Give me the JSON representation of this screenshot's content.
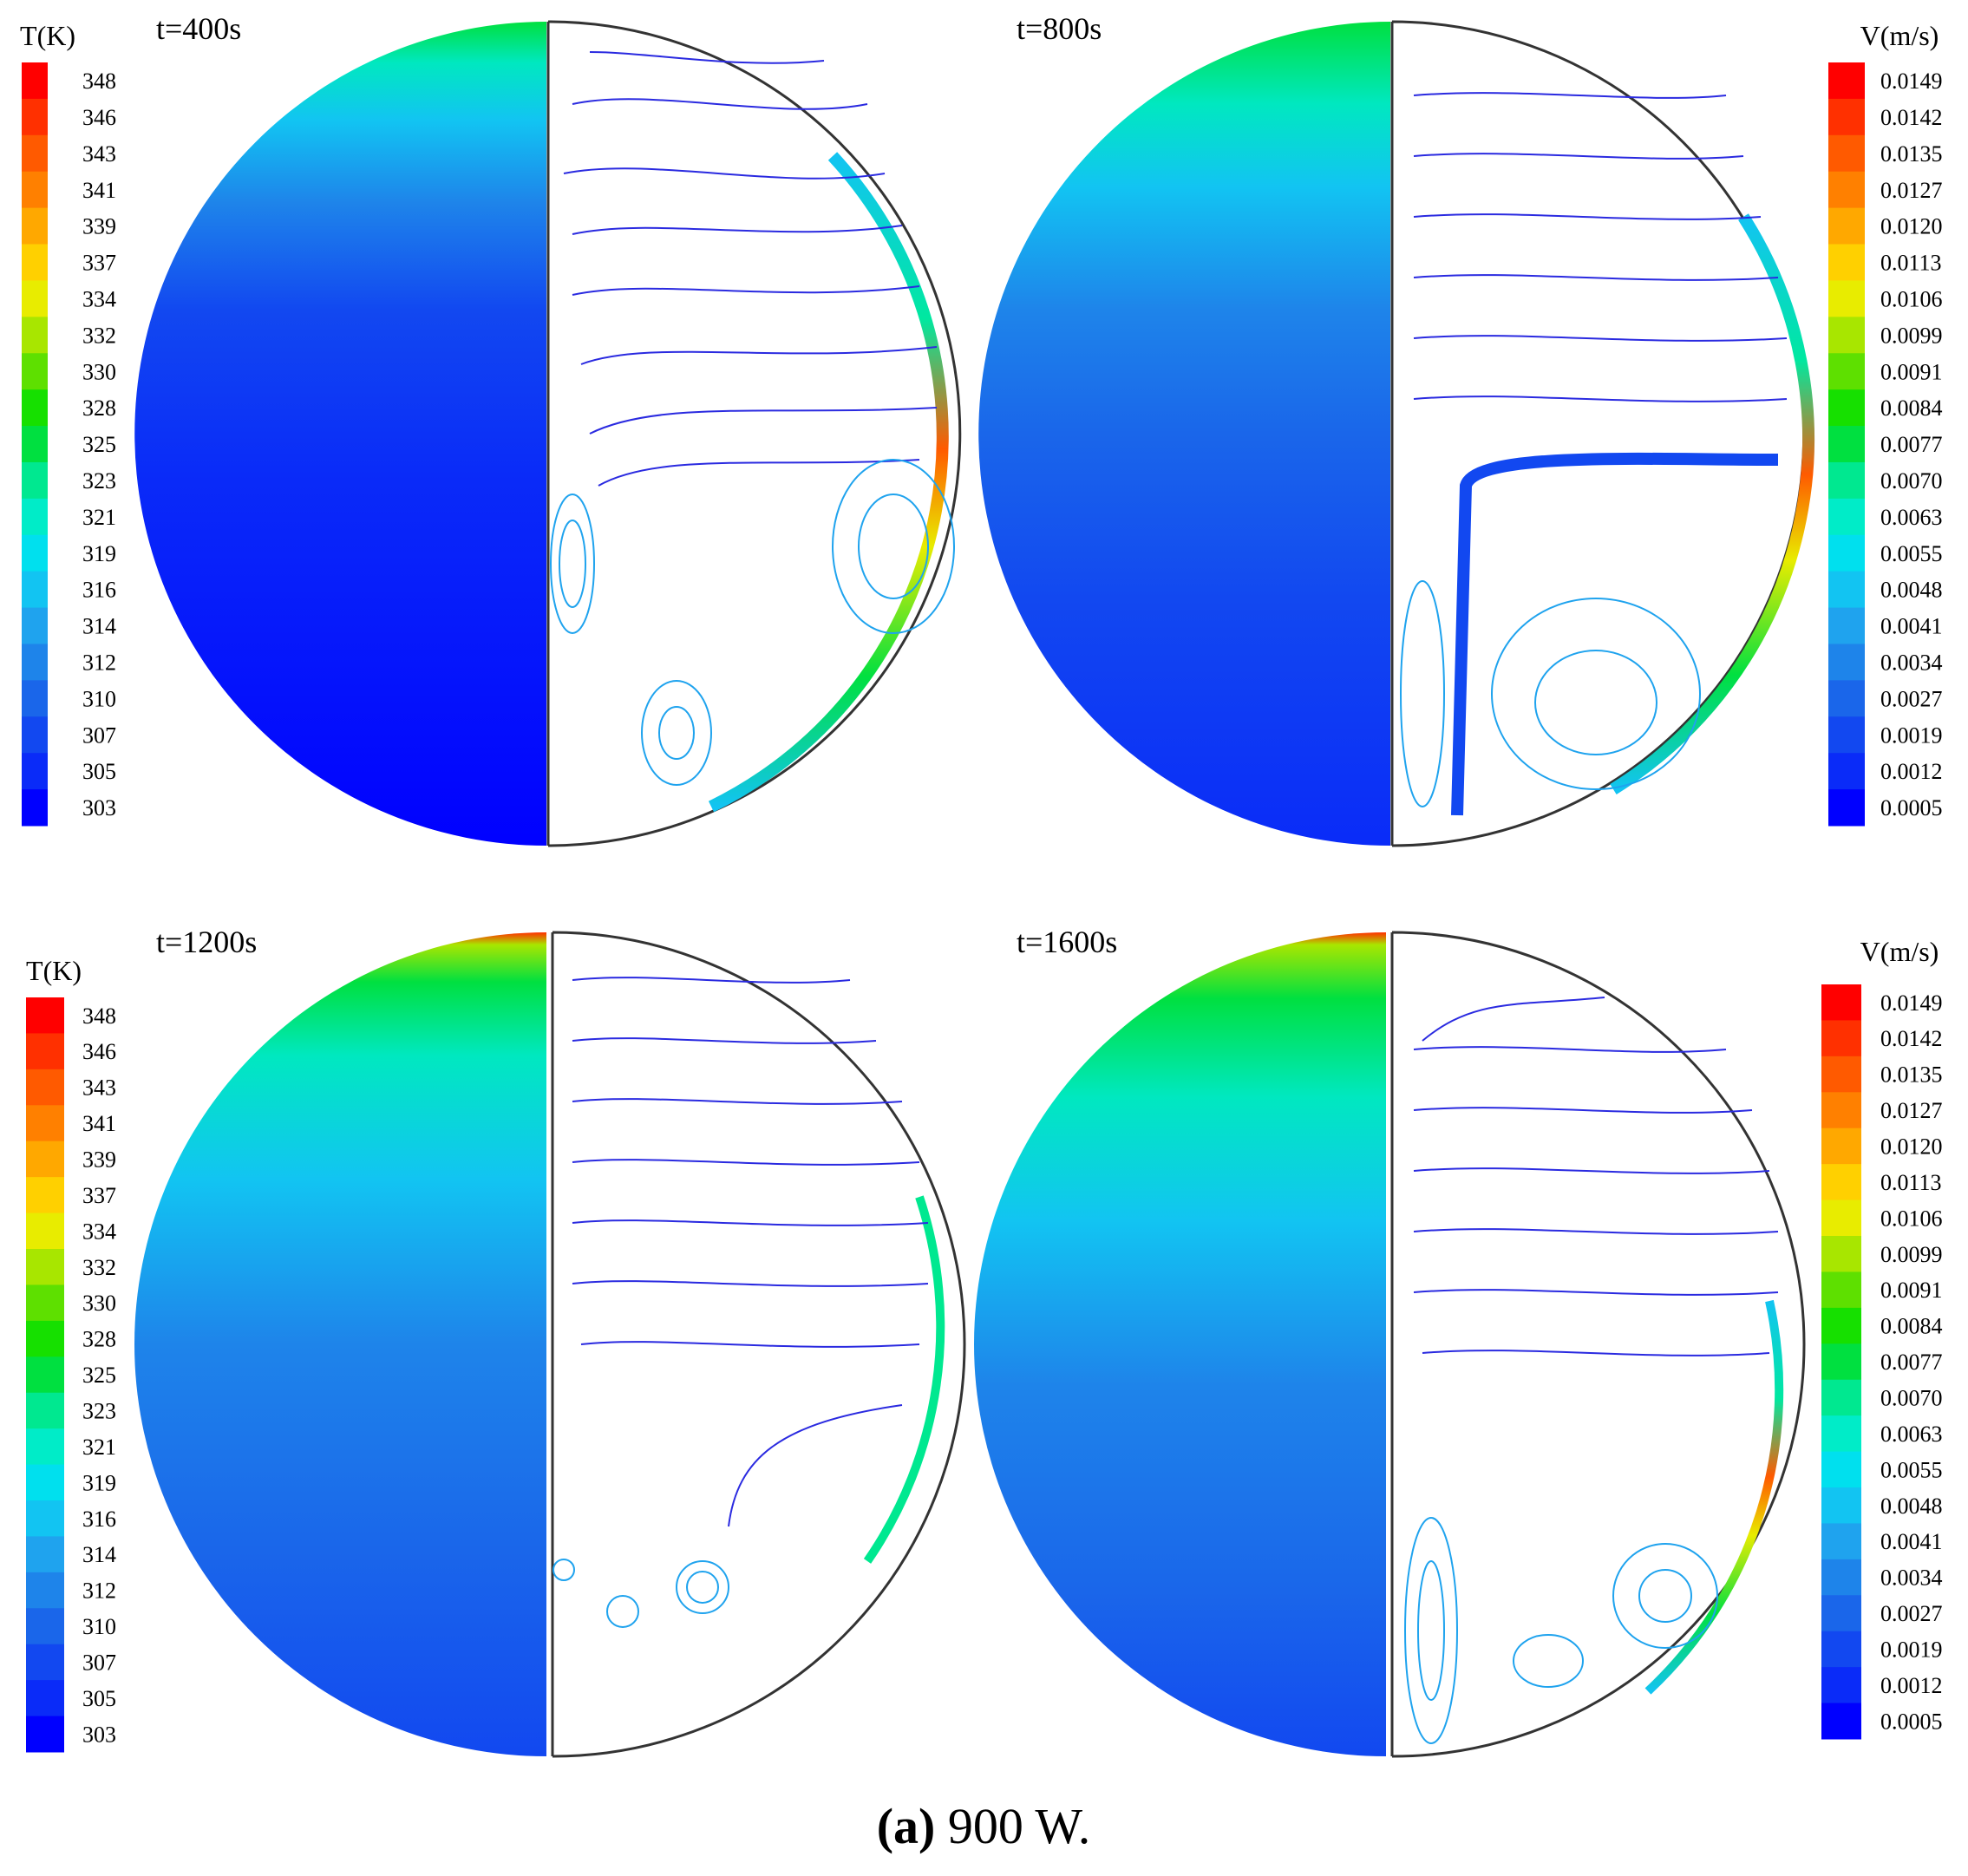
{
  "temperature_legend": {
    "title": "T(K)",
    "ticks": [
      "348",
      "346",
      "343",
      "341",
      "339",
      "337",
      "334",
      "332",
      "330",
      "328",
      "325",
      "323",
      "321",
      "319",
      "316",
      "314",
      "312",
      "310",
      "307",
      "305",
      "303"
    ]
  },
  "velocity_legend": {
    "title": "V(m/s)",
    "ticks": [
      "0.0149",
      "0.0142",
      "0.0135",
      "0.0127",
      "0.0120",
      "0.0113",
      "0.0106",
      "0.0099",
      "0.0091",
      "0.0084",
      "0.0077",
      "0.0070",
      "0.0063",
      "0.0055",
      "0.0048",
      "0.0041",
      "0.0034",
      "0.0027",
      "0.0019",
      "0.0012",
      "0.0005"
    ]
  },
  "panels": [
    {
      "time_label": "t=400s"
    },
    {
      "time_label": "t=800s"
    },
    {
      "time_label": "t=1200s"
    },
    {
      "time_label": "t=1600s"
    }
  ],
  "caption": {
    "label": "(a)",
    "text": " 900 W."
  },
  "colors": {
    "palette": [
      "#0000ff",
      "#0a2bf8",
      "#1248f0",
      "#1a66ea",
      "#1e84ea",
      "#1fa3ee",
      "#12c4f2",
      "#00e0ee",
      "#00ecc8",
      "#00e890",
      "#00e040",
      "#16e000",
      "#5ee000",
      "#a8e600",
      "#e8ec00",
      "#ffd000",
      "#ffa800",
      "#ff8000",
      "#ff5a00",
      "#ff3000",
      "#ff0000"
    ],
    "streamline": "#2a2ae0",
    "outline": "#333333"
  }
}
